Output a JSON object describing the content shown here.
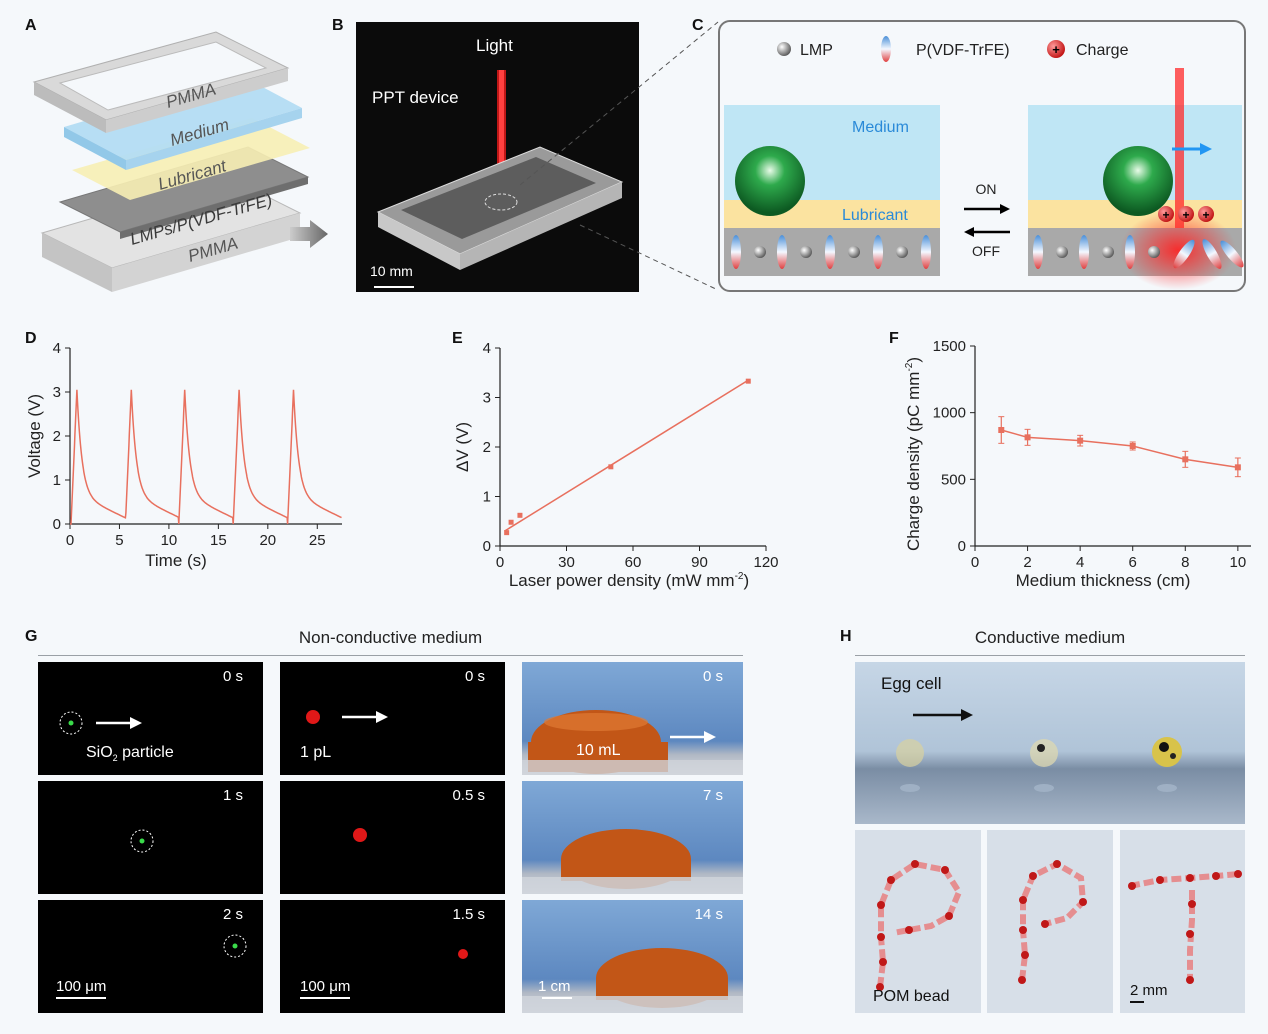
{
  "panel_labels": {
    "a": "A",
    "b": "B",
    "c": "C",
    "d": "D",
    "e": "E",
    "f": "F",
    "g": "G",
    "h": "H"
  },
  "panel_a": {
    "layers": [
      "PMMA",
      "Medium",
      "Lubricant",
      "LMPs/P(VDF-TrFE)",
      "PMMA"
    ]
  },
  "panel_b": {
    "light": "Light",
    "device": "PPT device",
    "scale": "10 mm"
  },
  "panel_c": {
    "legend": {
      "lmp": "LMP",
      "pvdf": "P(VDF-TrFE)",
      "charge": "Charge",
      "plus": "+"
    },
    "medium": "Medium",
    "lubricant": "Lubricant",
    "on": "ON",
    "off": "OFF"
  },
  "chart_data": [
    {
      "type": "line",
      "panel": "D",
      "xlabel": "Time (s)",
      "ylabel": "Voltage (V)",
      "xlim": [
        0,
        27.5
      ],
      "ylim": [
        0,
        4
      ],
      "xticks": [
        0,
        5,
        10,
        15,
        20,
        25
      ],
      "yticks": [
        0,
        1,
        2,
        3,
        4
      ],
      "series": [
        {
          "name": "Voltage",
          "color": "#e8705e",
          "peak_times": [
            0.7,
            6.2,
            11.6,
            17.1,
            22.6
          ],
          "peak_value": 3.05,
          "period": 5.45
        }
      ]
    },
    {
      "type": "scatter",
      "panel": "E",
      "xlabel": "Laser power density (mW mm",
      "xlabel_sup": "-2",
      "xlabel_end": ")",
      "ylabel": "ΔV (V)",
      "xlim": [
        0,
        120
      ],
      "ylim": [
        0,
        4
      ],
      "xticks": [
        0,
        30,
        60,
        90,
        120
      ],
      "yticks": [
        0,
        1,
        2,
        3,
        4
      ],
      "x": [
        3,
        5,
        9,
        50,
        112
      ],
      "y": [
        0.27,
        0.48,
        0.62,
        1.6,
        3.33
      ],
      "fit": [
        [
          2,
          0.3
        ],
        [
          112,
          3.35
        ]
      ],
      "color": "#e8705e"
    },
    {
      "type": "line",
      "panel": "F",
      "xlabel": "Medium thickness (cm)",
      "ylabel": "Charge density (pC mm",
      "ylabel_sup": "-2",
      "ylabel_end": ")",
      "xlim": [
        0,
        10.5
      ],
      "ylim": [
        0,
        1500
      ],
      "xticks": [
        0,
        2,
        4,
        6,
        8,
        10
      ],
      "yticks": [
        0,
        500,
        1000,
        1500
      ],
      "x": [
        1,
        2,
        4,
        6,
        8,
        10
      ],
      "y": [
        870,
        815,
        790,
        750,
        650,
        590
      ],
      "err": [
        100,
        60,
        40,
        30,
        60,
        70
      ],
      "color": "#e8705e"
    }
  ],
  "panel_g": {
    "title": "Non-conductive medium",
    "col1": {
      "times": [
        "0 s",
        "1 s",
        "2 s"
      ],
      "label": "SiO",
      "sub": "2",
      "label_end": " particle",
      "scale": "100 μm"
    },
    "col2": {
      "times": [
        "0 s",
        "0.5 s",
        "1.5 s"
      ],
      "label": "1 pL",
      "scale": "100 μm"
    },
    "col3": {
      "times": [
        "0 s",
        "7 s",
        "14 s"
      ],
      "label": "10 mL",
      "scale": "1 cm"
    }
  },
  "panel_h": {
    "title": "Conductive medium",
    "egg": "Egg cell",
    "bead": "POM bead",
    "scale": "2 mm"
  }
}
